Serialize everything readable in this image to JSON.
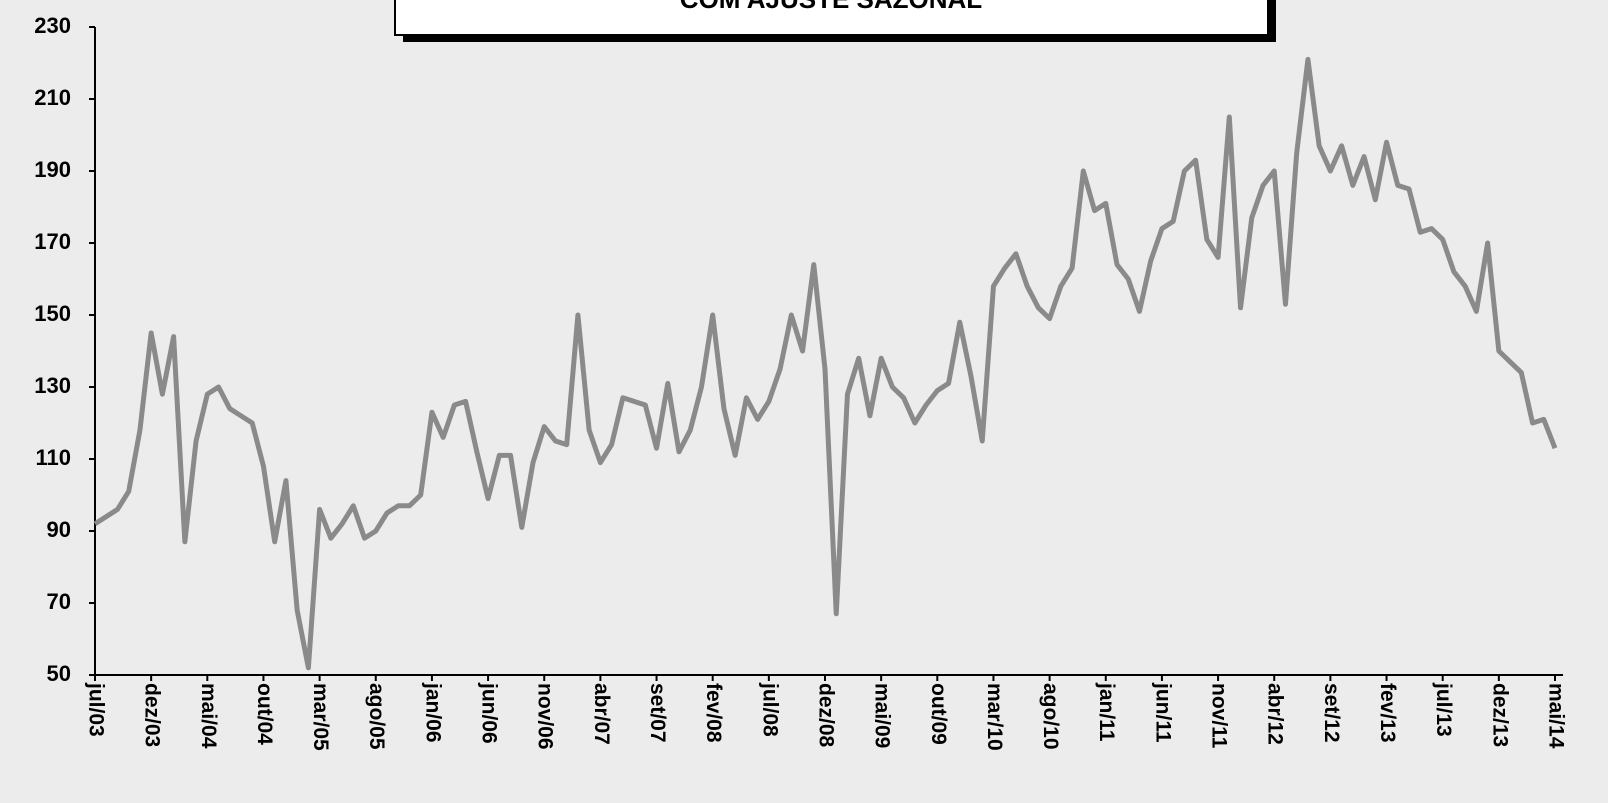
{
  "chart_data": {
    "type": "line",
    "title": "COM AJUSTE SAZONAL",
    "categories": [
      "jul/03",
      null,
      null,
      null,
      null,
      "dez/03",
      null,
      null,
      null,
      null,
      "mai/04",
      null,
      null,
      null,
      null,
      "out/04",
      null,
      null,
      null,
      null,
      "mar/05",
      null,
      null,
      null,
      null,
      "ago/05",
      null,
      null,
      null,
      null,
      "jan/06",
      null,
      null,
      null,
      null,
      "jun/06",
      null,
      null,
      null,
      null,
      "nov/06",
      null,
      null,
      null,
      null,
      "abr/07",
      null,
      null,
      null,
      null,
      "set/07",
      null,
      null,
      null,
      null,
      "fev/08",
      null,
      null,
      null,
      null,
      "jul/08",
      null,
      null,
      null,
      null,
      "dez/08",
      null,
      null,
      null,
      null,
      "mai/09",
      null,
      null,
      null,
      null,
      "out/09",
      null,
      null,
      null,
      null,
      "mar/10",
      null,
      null,
      null,
      null,
      "ago/10",
      null,
      null,
      null,
      null,
      "jan/11",
      null,
      null,
      null,
      null,
      "jun/11",
      null,
      null,
      null,
      null,
      "nov/11",
      null,
      null,
      null,
      null,
      "abr/12",
      null,
      null,
      null,
      null,
      "set/12",
      null,
      null,
      null,
      null,
      "fev/13",
      null,
      null,
      null,
      null,
      "jul/13",
      null,
      null,
      null,
      null,
      "dez/13",
      null,
      null,
      null,
      null,
      "mai/14"
    ],
    "series": [
      {
        "color": "#8a8a8a",
        "values": [
          92,
          94,
          96,
          101,
          118,
          145,
          128,
          144,
          87,
          115,
          128,
          130,
          124,
          122,
          120,
          108,
          87,
          104,
          68,
          52,
          96,
          88,
          92,
          97,
          88,
          90,
          95,
          97,
          97,
          100,
          123,
          116,
          125,
          126,
          112,
          99,
          111,
          111,
          91,
          109,
          119,
          115,
          114,
          150,
          118,
          109,
          114,
          127,
          126,
          125,
          113,
          131,
          112,
          118,
          130,
          150,
          124,
          111,
          127,
          121,
          126,
          135,
          150,
          140,
          164,
          135,
          67,
          128,
          138,
          122,
          138,
          130,
          127,
          120,
          125,
          129,
          131,
          148,
          133,
          115,
          158,
          163,
          167,
          158,
          152,
          149,
          158,
          163,
          190,
          179,
          181,
          164,
          160,
          151,
          165,
          174,
          176,
          190,
          193,
          171,
          166,
          205,
          152,
          177,
          186,
          190,
          153,
          195,
          221,
          197,
          190,
          197,
          186,
          194,
          182,
          198,
          186,
          185,
          173,
          174,
          171,
          162,
          158,
          151,
          170,
          140,
          137,
          134,
          120,
          121,
          113
        ]
      }
    ],
    "ylim": [
      50,
      230
    ],
    "yticks": [
      50,
      70,
      90,
      110,
      130,
      150,
      170,
      190,
      210,
      230
    ]
  }
}
